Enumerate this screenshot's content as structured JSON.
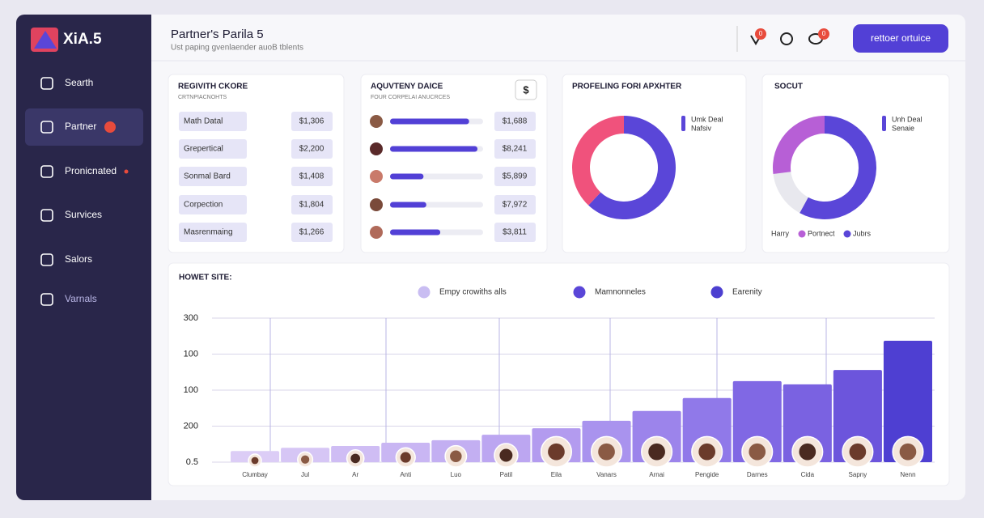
{
  "sidebar": {
    "brand": "XiA.5",
    "nav": [
      "Searth",
      "Partner",
      "Pronicnated",
      "Survices",
      "Salors",
      "Varnals"
    ]
  },
  "header": {
    "title": "Partner's Parila 5",
    "subtitle": "Ust paping gvenlaender auoB tblents",
    "notifications": [
      "0",
      "0"
    ],
    "button": "rettoer ortuice"
  },
  "cards": [
    {
      "title": "REGIVITH CKORE",
      "subtitle": "CRTNPIACNOHTS",
      "rows": [
        {
          "label": "Math Datal",
          "amount": "$1,306"
        },
        {
          "label": "Grepertical",
          "amount": "$2,200"
        },
        {
          "label": "Sonmal Bard",
          "amount": "$1,408"
        },
        {
          "label": "Corpection",
          "amount": "$1,804"
        },
        {
          "label": "Masrenmaing",
          "amount": "$1,266"
        }
      ]
    },
    {
      "title": "AQUVTENY DAICE",
      "subtitle": "FOUR CORPELAI ANUCRCES",
      "icon": "$",
      "rows": [
        {
          "amount": "$1,688",
          "progress": 0.85
        },
        {
          "amount": "$8,241",
          "progress": 0.94
        },
        {
          "amount": "$5,899",
          "progress": 0.36
        },
        {
          "amount": "$7,972",
          "progress": 0.39
        },
        {
          "amount": "$3,811",
          "progress": 0.54
        }
      ]
    }
  ],
  "donuts": [
    {
      "title": "PROFELING FORI APXHTER",
      "legend": [
        "Umk Deal",
        "Nafsiv"
      ],
      "legend_color": "#5a46d8",
      "segments": [
        {
          "value": 62,
          "color": "#5a46d8"
        },
        {
          "value": 38,
          "color": "#f0527c"
        }
      ]
    },
    {
      "title": "SOCUT",
      "legend": [
        "Unh Deal",
        "Senaie"
      ],
      "legend_color": "#5a46d8",
      "segments": [
        {
          "name": "Jubrs",
          "value": 58,
          "color": "#5a46d8"
        },
        {
          "name": "Harry",
          "value": 15,
          "color": "#e8e8ee"
        },
        {
          "name": "Portnect",
          "value": 27,
          "color": "#b75fd6"
        }
      ]
    }
  ],
  "chart_data": {
    "type": "bar",
    "title": "HOWET SITE:",
    "legend": [
      {
        "name": "Empy crowiths alls",
        "color": "#c9bdf2"
      },
      {
        "name": "Mamnonneles",
        "color": "#5a46d8"
      },
      {
        "name": "Earenity",
        "color": "#4c3fd0"
      }
    ],
    "categories": [
      "Clumbay",
      "Jul",
      "Ar",
      "Anti",
      "Luo",
      "Patil",
      "Eila",
      "Vanars",
      "Arnai",
      "Pengide",
      "Darnes",
      "Cida",
      "Sapny",
      "Nenn"
    ],
    "values": [
      0.31,
      0.4,
      0.45,
      0.54,
      0.61,
      0.76,
      0.94,
      1.15,
      1.42,
      1.78,
      2.25,
      2.16,
      2.56,
      3.37
    ],
    "colors": [
      "#dccdf6",
      "#d6c6f5",
      "#cfbdf4",
      "#c9b6f3",
      "#c3aff2",
      "#bca6f1",
      "#b39bef",
      "#a993ee",
      "#9c84eb",
      "#9079e9",
      "#8068e4",
      "#7a62e1",
      "#6c55dc",
      "#4e3fd2"
    ],
    "ylim": [
      0,
      4
    ],
    "yticks": [
      {
        "value": 0,
        "label": "0.5"
      },
      {
        "value": 1,
        "label": "200"
      },
      {
        "value": 2,
        "label": "100"
      },
      {
        "value": 3,
        "label": "100"
      },
      {
        "value": 4,
        "label": "300"
      }
    ],
    "grid": true
  }
}
